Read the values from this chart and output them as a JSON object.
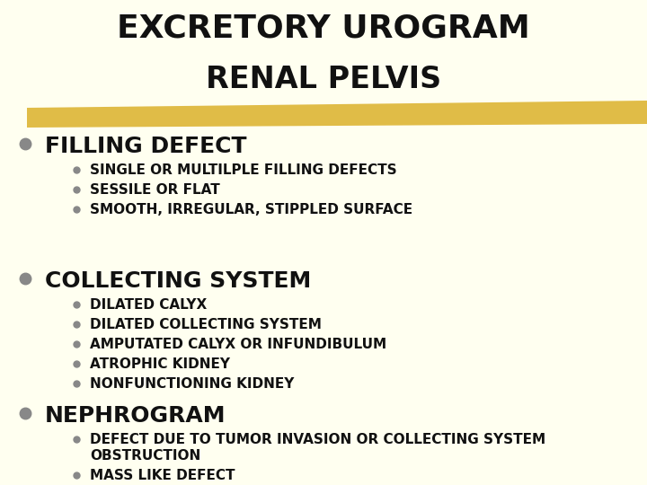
{
  "background_color": "#FFFFF0",
  "title_line1": "EXCRETORY UROGRAM",
  "title_line2": "RENAL PELVIS",
  "title_fontsize": 26,
  "title_color": "#111111",
  "highlight_color": "#D4A000",
  "highlight_alpha": 0.7,
  "bullet_color": "#888888",
  "sections": [
    {
      "heading": "FILLING DEFECT",
      "heading_fontsize": 18,
      "items": [
        "SINGLE OR MULTILPLE FILLING DEFECTS",
        "SESSILE OR FLAT",
        "SMOOTH, IRREGULAR, STIPPLED SURFACE"
      ]
    },
    {
      "heading": "COLLECTING SYSTEM",
      "heading_fontsize": 18,
      "items": [
        "DILATED CALYX",
        "DILATED COLLECTING SYSTEM",
        "AMPUTATED CALYX OR INFUNDIBULUM",
        "ATROPHIC KIDNEY",
        "NONFUNCTIONING KIDNEY"
      ]
    },
    {
      "heading": "NEPHROGRAM",
      "heading_fontsize": 18,
      "items": [
        "DEFECT DUE TO TUMOR INVASION OR COLLECTING SYSTEM\nOBSTRUCTION",
        "MASS LIKE DEFECT"
      ]
    }
  ],
  "item_fontsize": 11,
  "item_color": "#111111",
  "font_family": "sans-serif"
}
